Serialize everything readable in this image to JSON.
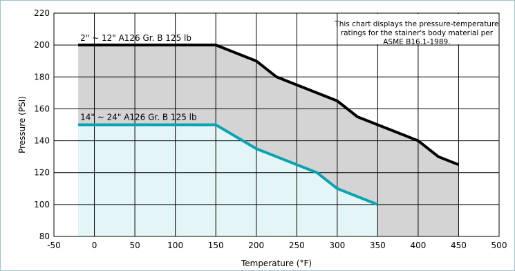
{
  "chart_data": {
    "type": "line",
    "xlabel": "Temperature (°F)",
    "ylabel": "Pressure (PSI)",
    "xlim": [
      -50,
      500
    ],
    "ylim": [
      80,
      220
    ],
    "xticks": [
      -50,
      0,
      50,
      100,
      150,
      200,
      250,
      300,
      350,
      400,
      450,
      500
    ],
    "yticks": [
      80,
      100,
      120,
      140,
      160,
      180,
      200,
      220
    ],
    "grid": true,
    "note_lines": [
      "This chart displays the pressure-temperature",
      "ratings  for the stainer's body material per",
      "ASME B16.1-1989."
    ],
    "series": [
      {
        "name": "2\" ~ 12\" A126 Gr. B 125 lb",
        "color": "#000000",
        "fill": "#d4d4d4",
        "x": [
          -20,
          150,
          200,
          225,
          275,
          300,
          325,
          350,
          375,
          400,
          425,
          450
        ],
        "y": [
          200,
          200,
          190,
          180,
          170,
          165,
          155,
          150,
          145,
          140,
          130,
          125
        ]
      },
      {
        "name": "14\" ~ 24\" A126 Gr. B 125 lb",
        "color": "#0aa3b0",
        "fill": "#e3f5f6",
        "x": [
          -20,
          150,
          200,
          275,
          300,
          350
        ],
        "y": [
          150,
          150,
          135,
          120,
          110,
          100
        ]
      }
    ]
  }
}
